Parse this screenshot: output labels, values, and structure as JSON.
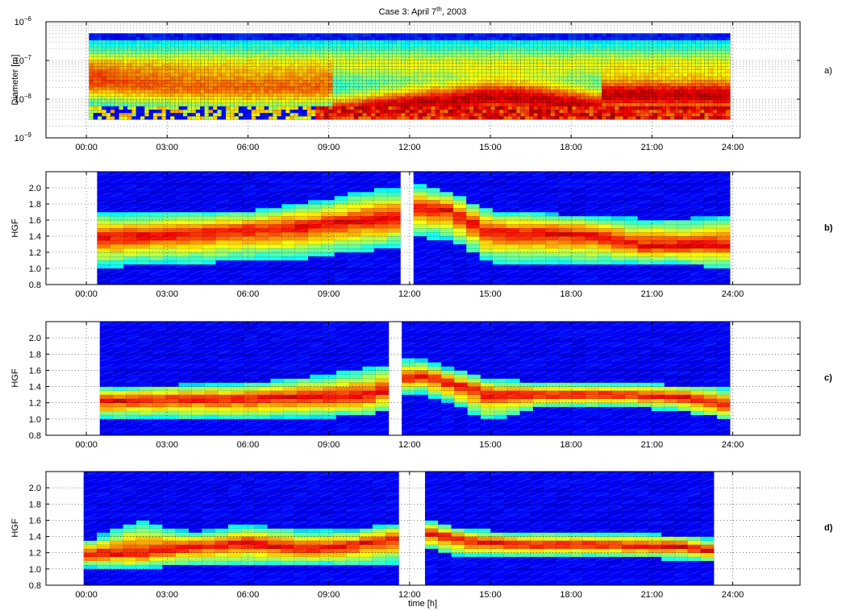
{
  "chart_data": [
    {
      "id": "a",
      "type": "heatmap",
      "title": "Case 3: April 7th, 2003",
      "title_main": "Case 3: April 7",
      "title_sup": "th",
      "title_tail": ", 2003",
      "ylabel": "Diameter [m]",
      "yscale": "log",
      "ylim": [
        1e-09,
        1e-06
      ],
      "yticks": [
        {
          "value": 1e-09,
          "base": "10",
          "exp": "−9"
        },
        {
          "value": 1e-08,
          "base": "10",
          "exp": "−8"
        },
        {
          "value": 1e-07,
          "base": "10",
          "exp": "−7"
        },
        {
          "value": 1e-06,
          "base": "10",
          "exp": "−6"
        }
      ],
      "xlim": [
        -1.5,
        26.5
      ],
      "xticks": [
        "00:00",
        "03:00",
        "06:00",
        "09:00",
        "12:00",
        "15:00",
        "18:00",
        "21:00",
        "24:00"
      ],
      "panel_label": "a)",
      "data_start_hour": 0.1,
      "data_end_hour": 23.9,
      "diameter_min": 3e-09,
      "diameter_max": 5e-07,
      "description_series": "particle number size distribution (colour = concentration)",
      "grid": true
    },
    {
      "id": "b",
      "type": "heatmap",
      "ylabel": "HGF",
      "ylim": [
        0.8,
        2.2
      ],
      "yticks": [
        "0.8",
        "1.0",
        "1.2",
        "1.4",
        "1.6",
        "1.8",
        "2.0"
      ],
      "xlim": [
        -1.5,
        26.5
      ],
      "xticks": [
        "00:00",
        "03:00",
        "06:00",
        "09:00",
        "12:00",
        "15:00",
        "18:00",
        "21:00",
        "24:00"
      ],
      "panel_label": "b)",
      "data_start_hour": 0.4,
      "data_end_hour": 23.9,
      "gap_hours": [
        11.5,
        11.95
      ],
      "profile": [
        {
          "t": 0.5,
          "mode": 1.4,
          "low": 1.0,
          "high": 1.68
        },
        {
          "t": 2.0,
          "mode": 1.4,
          "low": 1.05,
          "high": 1.68
        },
        {
          "t": 4.0,
          "mode": 1.45,
          "low": 1.05,
          "high": 1.7
        },
        {
          "t": 6.0,
          "mode": 1.48,
          "low": 1.1,
          "high": 1.72
        },
        {
          "t": 8.0,
          "mode": 1.52,
          "low": 1.12,
          "high": 1.8
        },
        {
          "t": 10.0,
          "mode": 1.58,
          "low": 1.2,
          "high": 1.95
        },
        {
          "t": 11.4,
          "mode": 1.62,
          "low": 1.25,
          "high": 2.0
        },
        {
          "t": 12.2,
          "mode": 1.75,
          "low": 1.4,
          "high": 2.05
        },
        {
          "t": 13.5,
          "mode": 1.72,
          "low": 1.35,
          "high": 1.95
        },
        {
          "t": 15.0,
          "mode": 1.45,
          "low": 1.05,
          "high": 1.72
        },
        {
          "t": 17.0,
          "mode": 1.45,
          "low": 1.05,
          "high": 1.68
        },
        {
          "t": 19.0,
          "mode": 1.42,
          "low": 1.05,
          "high": 1.65
        },
        {
          "t": 20.5,
          "mode": 1.28,
          "low": 1.05,
          "high": 1.62
        },
        {
          "t": 22.0,
          "mode": 1.28,
          "low": 1.05,
          "high": 1.62
        },
        {
          "t": 23.9,
          "mode": 1.3,
          "low": 0.98,
          "high": 1.65
        }
      ]
    },
    {
      "id": "c",
      "type": "heatmap",
      "ylabel": "HGF",
      "ylim": [
        0.8,
        2.2
      ],
      "yticks": [
        "0.8",
        "1.0",
        "1.2",
        "1.4",
        "1.6",
        "1.8",
        "2.0"
      ],
      "xlim": [
        -1.5,
        26.5
      ],
      "xticks": [
        "00:00",
        "03:00",
        "06:00",
        "09:00",
        "12:00",
        "15:00",
        "18:00",
        "21:00",
        "24:00"
      ],
      "panel_label": "c)",
      "data_start_hour": 0.5,
      "data_end_hour": 23.9,
      "gap_hours": [
        11.0,
        11.85
      ],
      "profile": [
        {
          "t": 0.5,
          "mode": 1.22,
          "low": 1.0,
          "high": 1.4
        },
        {
          "t": 3.0,
          "mode": 1.25,
          "low": 1.0,
          "high": 1.42
        },
        {
          "t": 6.0,
          "mode": 1.25,
          "low": 1.0,
          "high": 1.45
        },
        {
          "t": 9.0,
          "mode": 1.28,
          "low": 1.02,
          "high": 1.55
        },
        {
          "t": 10.8,
          "mode": 1.3,
          "low": 1.05,
          "high": 1.65
        },
        {
          "t": 12.2,
          "mode": 1.55,
          "low": 1.35,
          "high": 1.75
        },
        {
          "t": 13.5,
          "mode": 1.45,
          "low": 1.2,
          "high": 1.62
        },
        {
          "t": 15.0,
          "mode": 1.3,
          "low": 0.98,
          "high": 1.5
        },
        {
          "t": 17.0,
          "mode": 1.3,
          "low": 1.15,
          "high": 1.45
        },
        {
          "t": 20.0,
          "mode": 1.3,
          "low": 1.15,
          "high": 1.45
        },
        {
          "t": 22.0,
          "mode": 1.28,
          "low": 1.1,
          "high": 1.42
        },
        {
          "t": 23.9,
          "mode": 1.15,
          "low": 0.98,
          "high": 1.4
        }
      ]
    },
    {
      "id": "d",
      "type": "heatmap",
      "ylabel": "HGF",
      "xlabel": "time [h]",
      "ylim": [
        0.8,
        2.2
      ],
      "yticks": [
        "0.8",
        "1.0",
        "1.2",
        "1.4",
        "1.6",
        "1.8",
        "2.0"
      ],
      "xlim": [
        -1.5,
        26.5
      ],
      "xticks": [
        "00:00",
        "03:00",
        "06:00",
        "09:00",
        "12:00",
        "15:00",
        "18:00",
        "21:00",
        "24:00"
      ],
      "panel_label": "d)",
      "data_start_hour": -0.1,
      "data_end_hour": 23.3,
      "gap_hours": [
        11.4,
        12.6
      ],
      "profile": [
        {
          "t": 0.0,
          "mode": 1.18,
          "low": 1.02,
          "high": 1.35
        },
        {
          "t": 2.0,
          "mode": 1.2,
          "low": 1.0,
          "high": 1.6
        },
        {
          "t": 4.0,
          "mode": 1.28,
          "low": 1.05,
          "high": 1.45
        },
        {
          "t": 6.0,
          "mode": 1.32,
          "low": 1.05,
          "high": 1.55
        },
        {
          "t": 8.0,
          "mode": 1.25,
          "low": 1.05,
          "high": 1.48
        },
        {
          "t": 10.0,
          "mode": 1.3,
          "low": 1.05,
          "high": 1.48
        },
        {
          "t": 11.3,
          "mode": 1.38,
          "low": 1.05,
          "high": 1.55
        },
        {
          "t": 12.7,
          "mode": 1.45,
          "low": 1.25,
          "high": 1.6
        },
        {
          "t": 14.0,
          "mode": 1.35,
          "low": 1.15,
          "high": 1.5
        },
        {
          "t": 16.0,
          "mode": 1.3,
          "low": 1.15,
          "high": 1.45
        },
        {
          "t": 19.0,
          "mode": 1.3,
          "low": 1.15,
          "high": 1.45
        },
        {
          "t": 22.0,
          "mode": 1.28,
          "low": 1.12,
          "high": 1.42
        },
        {
          "t": 23.2,
          "mode": 1.22,
          "low": 1.08,
          "high": 1.38
        }
      ]
    }
  ],
  "colors": {
    "background": "#ffffff",
    "nodata": "#ffffff",
    "colormap": "jet",
    "grid": "#000000",
    "mesh": "#6a7fd8"
  }
}
